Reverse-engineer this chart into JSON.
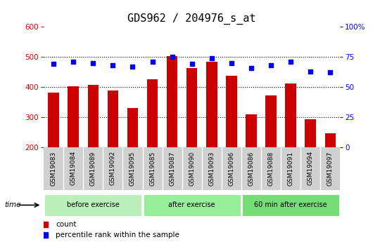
{
  "title": "GDS962 / 204976_s_at",
  "categories": [
    "GSM19083",
    "GSM19084",
    "GSM19089",
    "GSM19092",
    "GSM19095",
    "GSM19085",
    "GSM19087",
    "GSM19090",
    "GSM19093",
    "GSM19096",
    "GSM19086",
    "GSM19088",
    "GSM19091",
    "GSM19094",
    "GSM19097"
  ],
  "counts": [
    383,
    403,
    408,
    388,
    330,
    427,
    503,
    462,
    483,
    438,
    310,
    373,
    413,
    293,
    248
  ],
  "percentile_ranks": [
    69,
    71,
    70,
    68,
    67,
    71,
    75,
    69,
    74,
    70,
    66,
    68,
    71,
    63,
    62
  ],
  "groups": [
    {
      "label": "before exercise",
      "start": 0,
      "end": 5,
      "color": "#bbf0bb"
    },
    {
      "label": "after exercise",
      "start": 5,
      "end": 10,
      "color": "#99ee99"
    },
    {
      "label": "60 min after exercise",
      "start": 10,
      "end": 15,
      "color": "#77dd77"
    }
  ],
  "ylim": [
    200,
    600
  ],
  "y2lim": [
    0,
    100
  ],
  "yticks": [
    200,
    300,
    400,
    500,
    600
  ],
  "y2ticks": [
    0,
    25,
    50,
    75,
    100
  ],
  "bar_color": "#cc0000",
  "dot_color": "#0000ee",
  "grid_color": "#000000",
  "left_tick_color": "#cc0000",
  "right_tick_color": "#0000ee",
  "xlabel_bg": "#d0d0d0",
  "title_fontsize": 11,
  "tick_fontsize": 7.5,
  "cat_fontsize": 6.5
}
